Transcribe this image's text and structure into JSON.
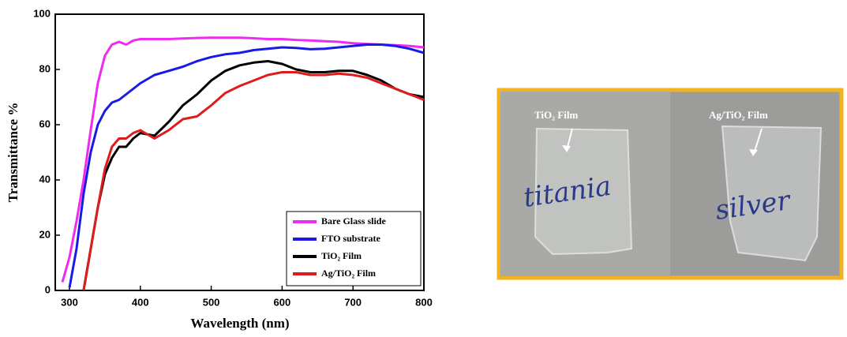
{
  "chart_data": {
    "type": "line",
    "xlabel": "Wavelength (nm)",
    "ylabel": "Transmittance %",
    "x": [
      280,
      290,
      300,
      310,
      320,
      330,
      340,
      350,
      360,
      370,
      380,
      390,
      400,
      420,
      440,
      460,
      480,
      500,
      520,
      540,
      560,
      580,
      600,
      620,
      640,
      660,
      680,
      700,
      720,
      740,
      760,
      780,
      800
    ],
    "xlim": [
      280,
      800
    ],
    "xticks": [
      300,
      400,
      500,
      600,
      700,
      800
    ],
    "ylim": [
      0,
      100
    ],
    "yticks": [
      0,
      20,
      40,
      60,
      80,
      100
    ],
    "legend": "lower right",
    "series": [
      {
        "name": "Bare Glass slide",
        "color": "#ee2bee",
        "values": [
          null,
          3,
          12,
          25,
          40,
          58,
          75,
          85,
          89,
          90,
          89,
          90.5,
          91,
          91,
          91,
          91.2,
          91.4,
          91.5,
          91.5,
          91.5,
          91.3,
          91,
          91,
          90.7,
          90.5,
          90.2,
          90,
          89.5,
          89.2,
          89,
          88.8,
          88.5,
          88
        ]
      },
      {
        "name": "FTO substrate",
        "color": "#1a1ae6",
        "values": [
          null,
          null,
          1,
          15,
          35,
          50,
          60,
          65,
          68,
          69,
          71,
          73,
          75,
          78,
          79.5,
          81,
          83,
          84.5,
          85.5,
          86,
          87,
          87.5,
          88,
          87.8,
          87.3,
          87.5,
          88,
          88.5,
          89,
          89,
          88.5,
          87.5,
          86
        ]
      },
      {
        "name": "TiO₂ Film",
        "color": "#000000",
        "values": [
          null,
          null,
          null,
          null,
          0,
          15,
          30,
          42,
          48,
          52,
          52,
          55,
          57,
          56,
          61,
          67,
          71,
          76,
          79.5,
          81.5,
          82.5,
          83,
          82,
          80,
          79,
          79,
          79.5,
          79.5,
          78,
          76,
          73,
          71,
          70
        ]
      },
      {
        "name": "Ag/TiO₂ Film",
        "color": "#e01b1b",
        "values": [
          null,
          null,
          null,
          null,
          0,
          15,
          30,
          44,
          52,
          55,
          55,
          57,
          58,
          55,
          58,
          62,
          63,
          67,
          71.5,
          74,
          76,
          78,
          79,
          79,
          78,
          78,
          78.5,
          78,
          77,
          75,
          73,
          71,
          69
        ]
      }
    ]
  },
  "photo": {
    "labels": [
      "TiO₂ Film",
      "Ag/TiO₂ Film"
    ],
    "handwriting": [
      "titania",
      "silver"
    ]
  }
}
